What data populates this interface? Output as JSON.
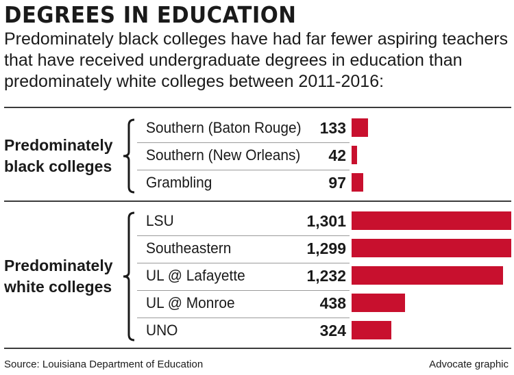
{
  "chart_data": {
    "type": "bar",
    "orientation": "horizontal",
    "title": "DEGREES IN EDUCATION",
    "subtitle": "Predominately black colleges have had far fewer aspiring teachers that have received undergraduate degrees in education than predominately white colleges between 2011-2016:",
    "bar_color": "#c8102e",
    "groups": [
      {
        "name": "Predominately black colleges",
        "items": [
          {
            "label": "Southern (Baton Rouge)",
            "value": 133,
            "value_label": "133"
          },
          {
            "label": "Southern (New Orleans)",
            "value": 42,
            "value_label": "42"
          },
          {
            "label": "Grambling",
            "value": 97,
            "value_label": "97"
          }
        ]
      },
      {
        "name": "Predominately white colleges",
        "items": [
          {
            "label": "LSU",
            "value": 1301,
            "value_label": "1,301"
          },
          {
            "label": "Southeastern",
            "value": 1299,
            "value_label": "1,299"
          },
          {
            "label": "UL @ Lafayette",
            "value": 1232,
            "value_label": "1,232"
          },
          {
            "label": "UL @ Monroe",
            "value": 438,
            "value_label": "438"
          },
          {
            "label": "UNO",
            "value": 324,
            "value_label": "324"
          }
        ]
      }
    ],
    "source": "Source: Louisiana Department of Education",
    "credit": "Advocate graphic"
  }
}
